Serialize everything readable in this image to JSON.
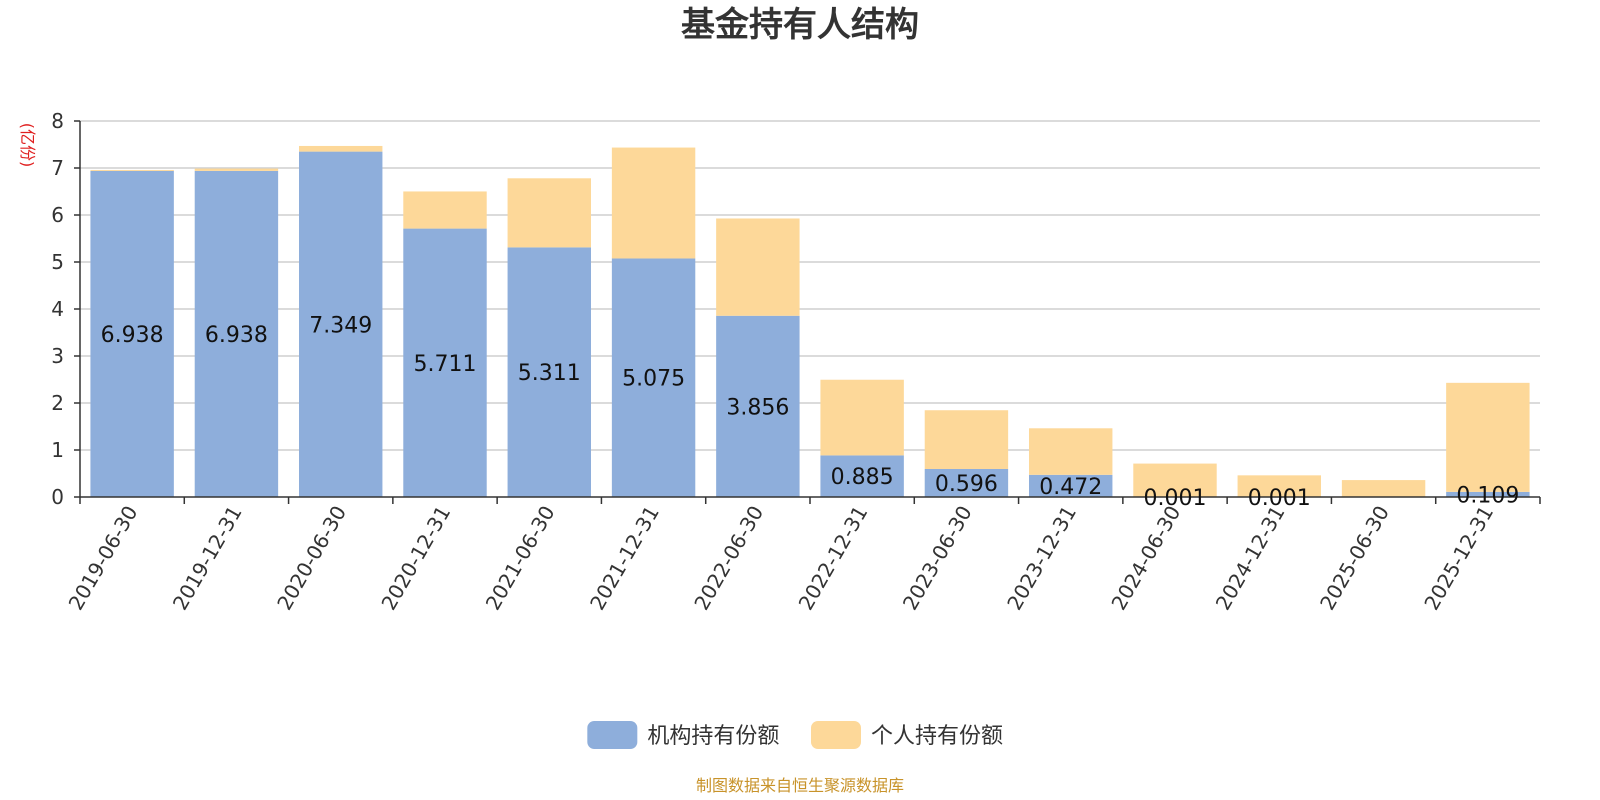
{
  "chart_data": {
    "type": "bar",
    "stacked": true,
    "title": "基金持有人结构",
    "unit_label": "(亿份)",
    "categories": [
      "2019-06-30",
      "2019-12-31",
      "2020-06-30",
      "2020-12-31",
      "2021-06-30",
      "2021-12-31",
      "2022-06-30",
      "2022-12-31",
      "2023-06-30",
      "2023-12-31",
      "2024-06-30",
      "2024-12-31",
      "2025-06-30",
      "2025-12-31"
    ],
    "ylim": [
      0,
      8
    ],
    "yticks": [
      0,
      1,
      2,
      3,
      4,
      5,
      6,
      7,
      8
    ],
    "grid": true,
    "legend_position": "bottom-center",
    "series": [
      {
        "name": "机构持有份额",
        "color": "#8eaedb",
        "values": [
          6.938,
          6.938,
          7.349,
          5.711,
          5.311,
          5.075,
          3.856,
          0.885,
          0.596,
          0.472,
          0.001,
          0.001,
          0.0,
          0.109
        ],
        "labels": [
          "6.938",
          "6.938",
          "7.349",
          "5.711",
          "5.311",
          "5.075",
          "3.856",
          "0.885",
          "0.596",
          "0.472",
          "0.001",
          "0.001",
          "",
          "0.109"
        ]
      },
      {
        "name": "个人持有份额",
        "color": "#fdd899",
        "values": [
          0.02,
          0.05,
          0.12,
          0.79,
          1.47,
          2.36,
          2.07,
          1.61,
          1.25,
          0.99,
          0.71,
          0.46,
          0.36,
          2.32
        ]
      }
    ]
  },
  "source": {
    "text": "制图数据来自恒生聚源数据库",
    "color": "#c8932a"
  },
  "unit_color": "#e02020"
}
